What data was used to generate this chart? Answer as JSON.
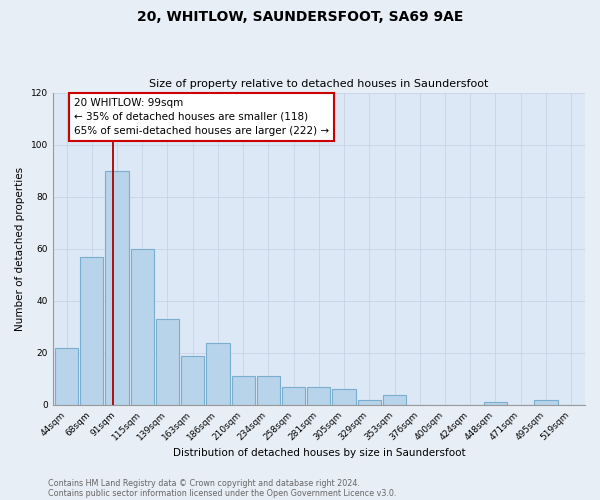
{
  "title": "20, WHITLOW, SAUNDERSFOOT, SA69 9AE",
  "subtitle": "Size of property relative to detached houses in Saundersfoot",
  "xlabel": "Distribution of detached houses by size in Saundersfoot",
  "ylabel": "Number of detached properties",
  "bar_labels": [
    "44sqm",
    "68sqm",
    "91sqm",
    "115sqm",
    "139sqm",
    "163sqm",
    "186sqm",
    "210sqm",
    "234sqm",
    "258sqm",
    "281sqm",
    "305sqm",
    "329sqm",
    "353sqm",
    "376sqm",
    "400sqm",
    "424sqm",
    "448sqm",
    "471sqm",
    "495sqm",
    "519sqm"
  ],
  "bar_values": [
    22,
    57,
    90,
    60,
    33,
    19,
    24,
    11,
    11,
    7,
    7,
    6,
    2,
    4,
    0,
    0,
    0,
    1,
    0,
    2,
    0
  ],
  "bar_color": "#b8d4eb",
  "bar_edge_color": "#7aaece",
  "ylim": [
    0,
    120
  ],
  "yticks": [
    0,
    20,
    40,
    60,
    80,
    100,
    120
  ],
  "vline_color": "#aa0000",
  "annotation_title": "20 WHITLOW: 99sqm",
  "annotation_line1": "← 35% of detached houses are smaller (118)",
  "annotation_line2": "65% of semi-detached houses are larger (222) →",
  "annotation_box_color": "#ffffff",
  "annotation_box_edge": "#cc0000",
  "footer_line1": "Contains HM Land Registry data © Crown copyright and database right 2024.",
  "footer_line2": "Contains public sector information licensed under the Open Government Licence v3.0.",
  "background_color": "#e8eef5",
  "plot_bg_color": "#dce8f5"
}
